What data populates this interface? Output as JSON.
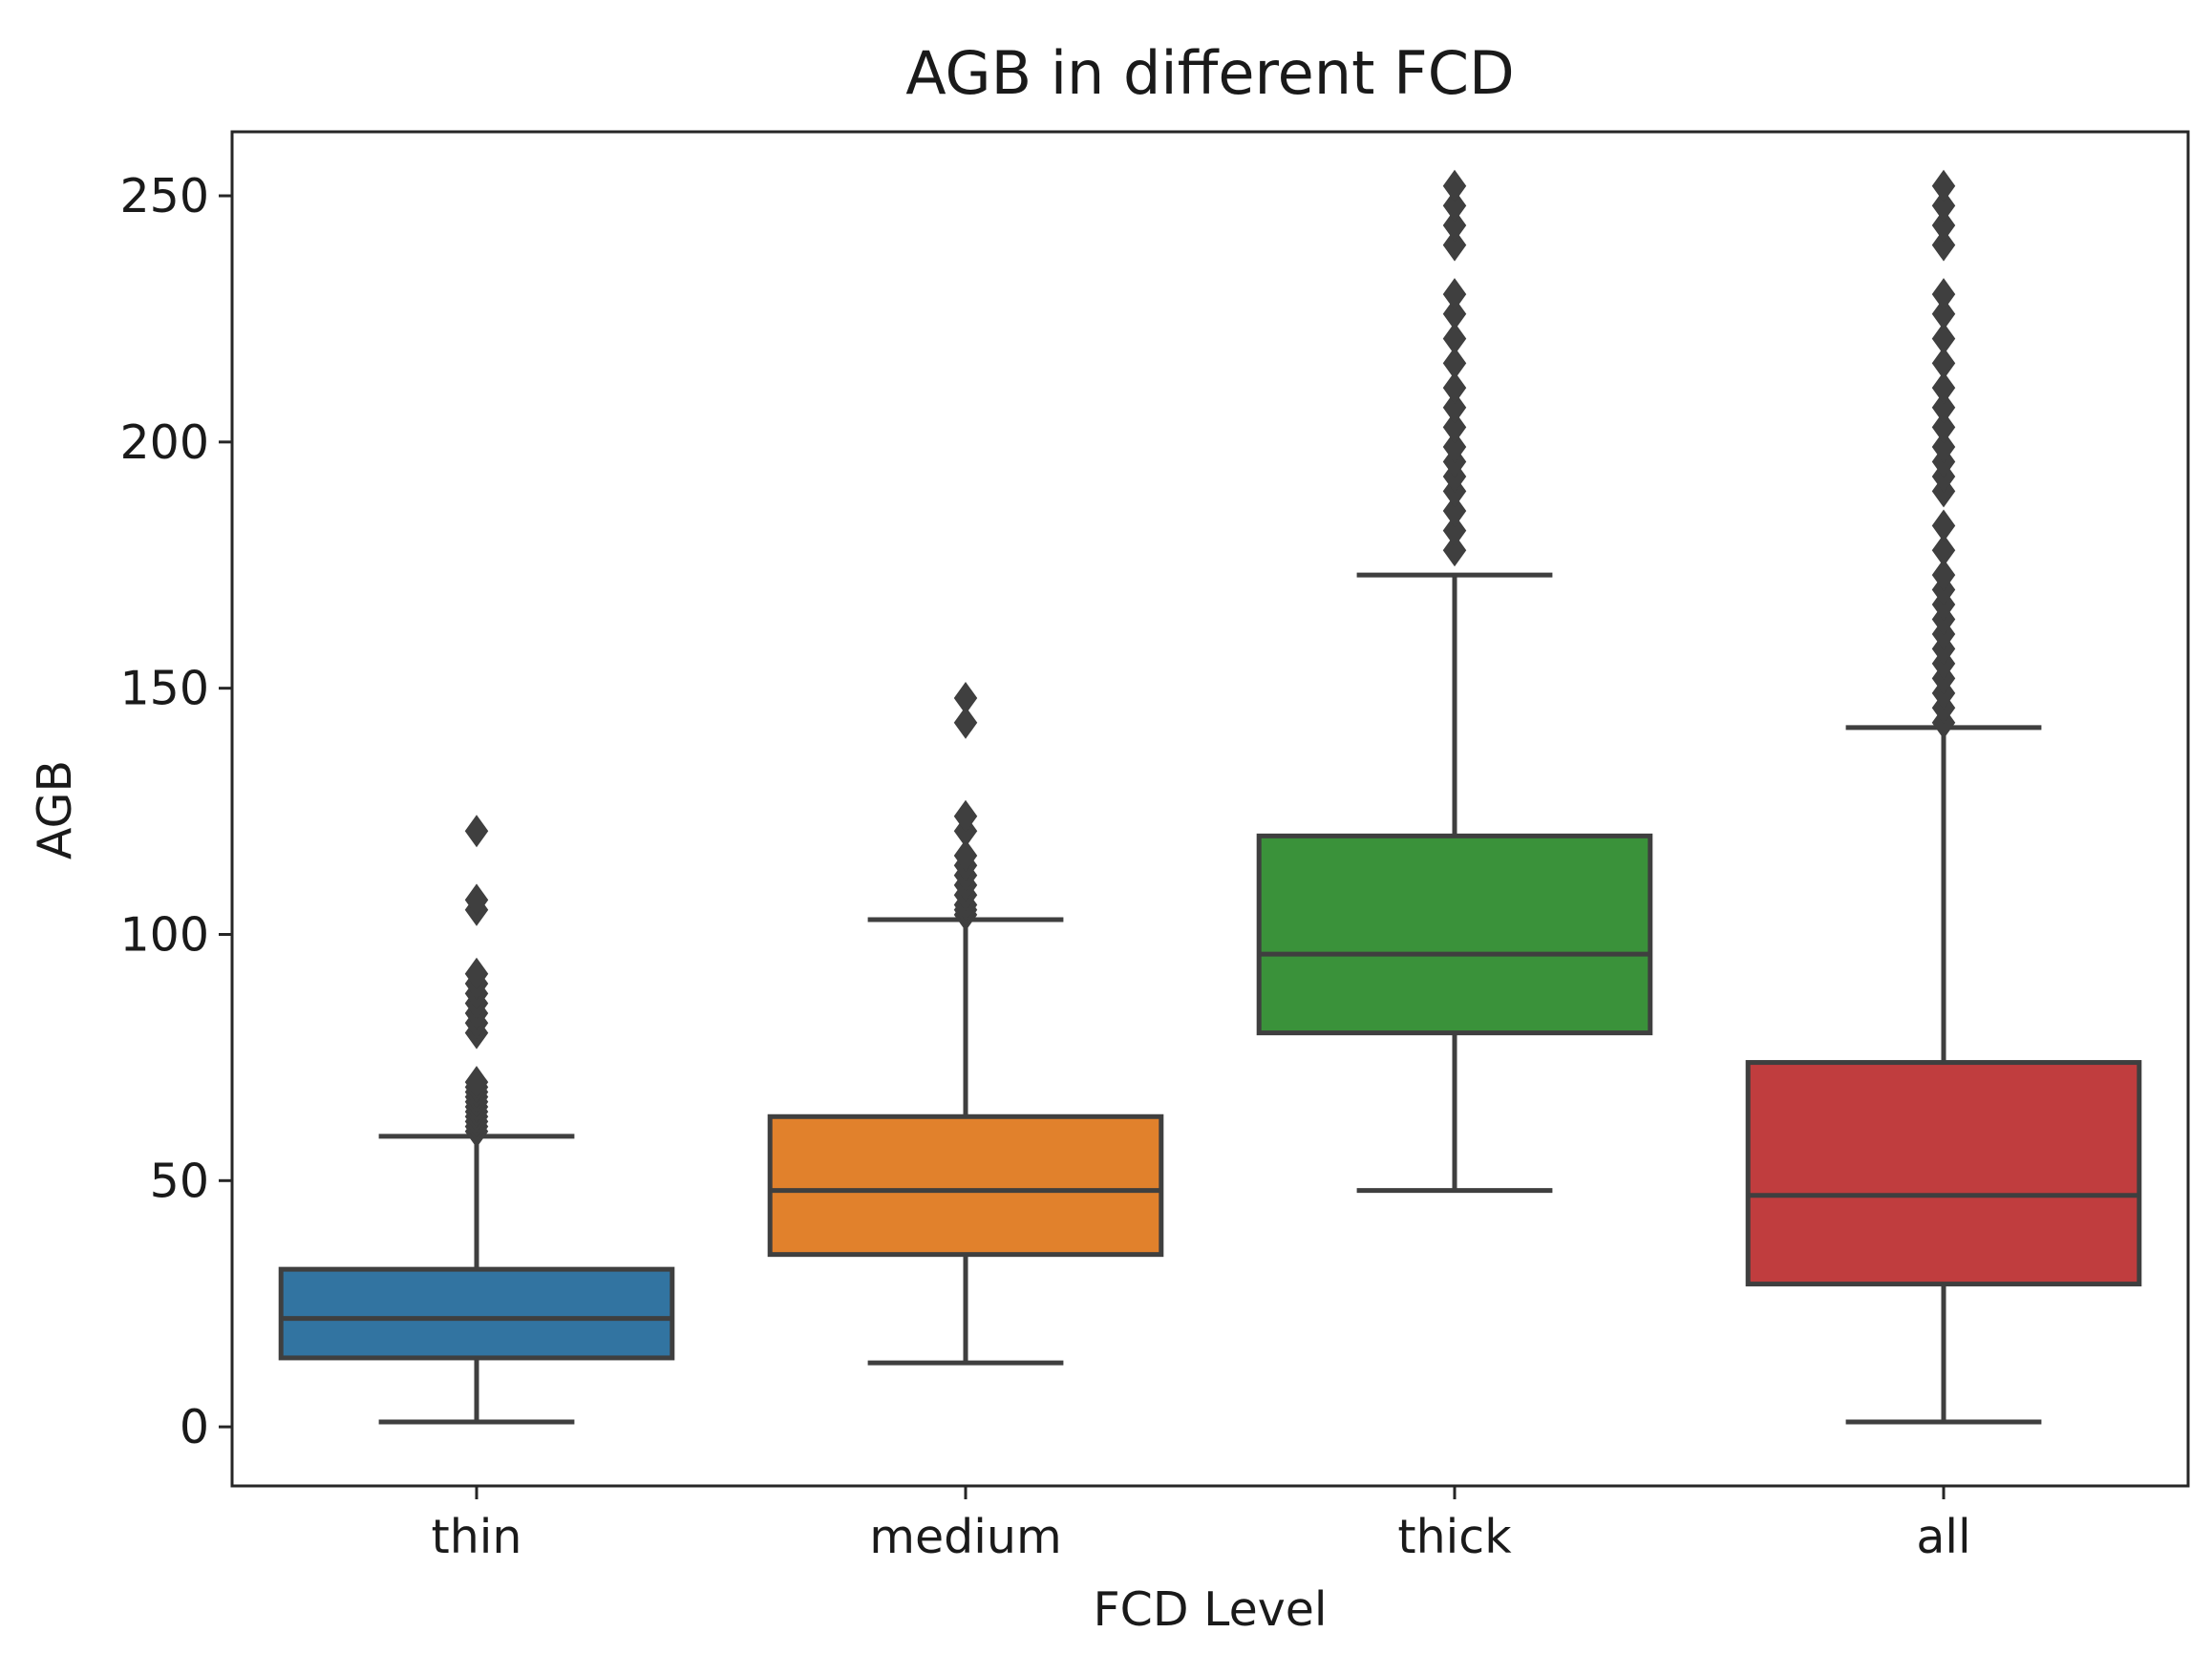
{
  "chart_data": {
    "type": "box",
    "title": "AGB in different FCD",
    "xlabel": "FCD Level",
    "ylabel": "AGB",
    "ylim": [
      -12,
      263
    ],
    "yticks": [
      0,
      50,
      100,
      150,
      200,
      250
    ],
    "categories": [
      "thin",
      "medium",
      "thick",
      "all"
    ],
    "grid": false,
    "legend": "none",
    "boxes": [
      {
        "category": "thin",
        "color": "#3274a1",
        "whisker_low": 1,
        "q1": 14,
        "median": 22,
        "q3": 32,
        "whisker_high": 59,
        "outliers": [
          60,
          61,
          62,
          63,
          64,
          65,
          66,
          67,
          68,
          69,
          70,
          80,
          82,
          84,
          86,
          88,
          90,
          92,
          105,
          107,
          121
        ]
      },
      {
        "category": "medium",
        "color": "#e1812c",
        "whisker_low": 13,
        "q1": 35,
        "median": 48,
        "q3": 63,
        "whisker_high": 103,
        "outliers": [
          104,
          105,
          106,
          108,
          110,
          112,
          114,
          116,
          121,
          124,
          143,
          148
        ]
      },
      {
        "category": "thick",
        "color": "#3a923a",
        "whisker_low": 48,
        "q1": 80,
        "median": 96,
        "q3": 120,
        "whisker_high": 173,
        "outliers": [
          178,
          182,
          186,
          190,
          193,
          196,
          199,
          203,
          207,
          211,
          216,
          221,
          226,
          230,
          240,
          244,
          248,
          252
        ]
      },
      {
        "category": "all",
        "color": "#c03d3e",
        "whisker_low": 1,
        "q1": 29,
        "median": 47,
        "q3": 74,
        "whisker_high": 142,
        "outliers": [
          143,
          146,
          149,
          152,
          155,
          158,
          161,
          164,
          167,
          170,
          173,
          178,
          183,
          190,
          193,
          196,
          199,
          203,
          207,
          211,
          216,
          221,
          226,
          230,
          240,
          244,
          248,
          252
        ]
      }
    ]
  }
}
